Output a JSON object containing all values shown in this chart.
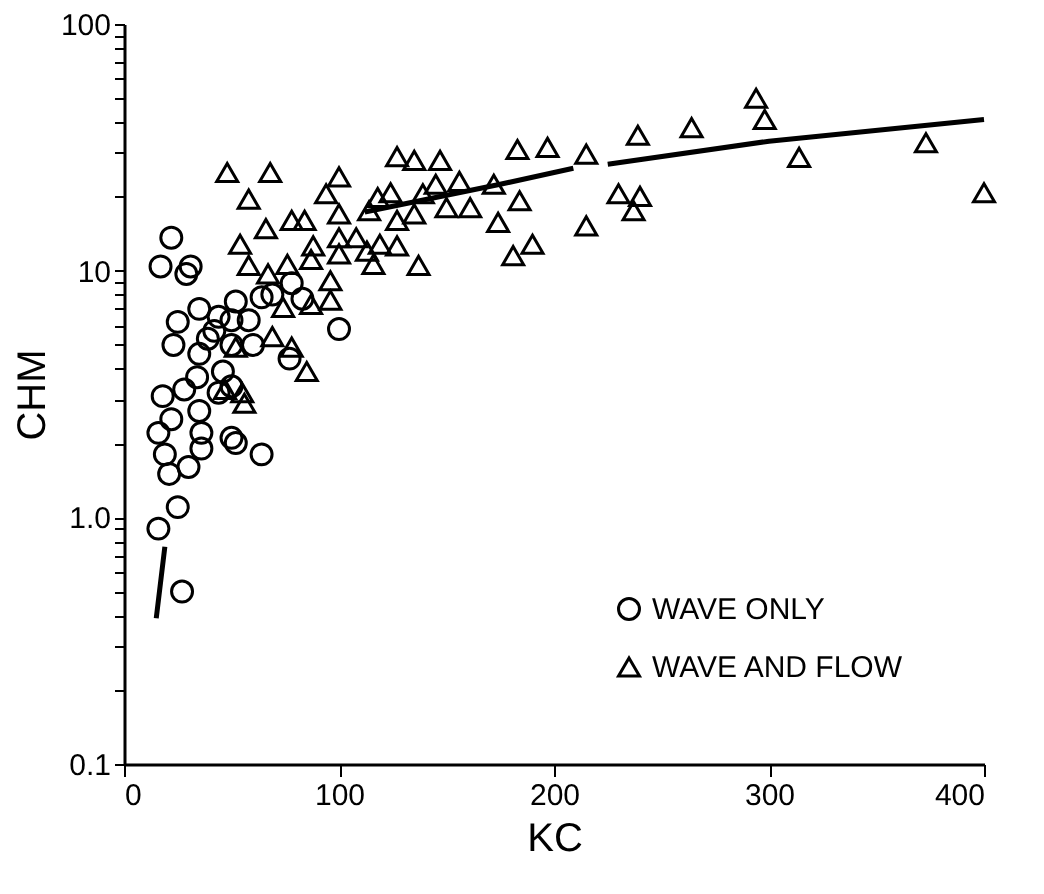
{
  "chart_data": {
    "type": "scatter",
    "xlabel": "KC",
    "ylabel": "CHM",
    "log": "y",
    "xlim": [
      0,
      400
    ],
    "xticks": [
      0,
      100,
      200,
      300,
      400
    ],
    "ylim": [
      0.1,
      100
    ],
    "yticks": [
      0.1,
      {
        "value": 0.2,
        "label": null
      },
      {
        "value": 0.3,
        "label": null
      },
      {
        "value": 0.4,
        "label": null
      },
      {
        "value": 0.5,
        "label": null
      },
      {
        "value": 0.6,
        "label": null
      },
      {
        "value": 0.7,
        "label": null
      },
      {
        "value": 0.8,
        "label": null
      },
      {
        "value": 0.9,
        "label": null
      },
      {
        "value": 1,
        "label": "1.0"
      },
      {
        "value": 2,
        "label": null
      },
      {
        "value": 3,
        "label": null
      },
      {
        "value": 4,
        "label": null
      },
      {
        "value": 5,
        "label": null
      },
      {
        "value": 6,
        "label": null
      },
      {
        "value": 7,
        "label": null
      },
      {
        "value": 8,
        "label": null
      },
      {
        "value": 9,
        "label": null
      },
      10,
      {
        "value": 20,
        "label": null
      },
      {
        "value": 30,
        "label": null
      },
      {
        "value": 40,
        "label": null
      },
      {
        "value": 50,
        "label": null
      },
      {
        "value": 60,
        "label": null
      },
      {
        "value": 70,
        "label": null
      },
      {
        "value": 80,
        "label": null
      },
      {
        "value": 90,
        "label": null
      },
      100
    ],
    "grid": false,
    "legend": "bottom right",
    "series": [
      {
        "name": "WAVE ONLY",
        "marker": "circle",
        "color": "#000000",
        "x": [
          16,
          27,
          22,
          17,
          31,
          29,
          35,
          44,
          52,
          25,
          23,
          39,
          35,
          50,
          58,
          60,
          50,
          64,
          46,
          34,
          28,
          18,
          35,
          36,
          36,
          16,
          19,
          21,
          30,
          25,
          50,
          52,
          64,
          100,
          69,
          78,
          83,
          44,
          50,
          77,
          42,
          22
        ],
        "values": [
          0.9,
          0.5,
          13.6,
          10.4,
          10.4,
          9.7,
          7.0,
          6.5,
          7.5,
          6.2,
          5.0,
          5.3,
          4.6,
          6.3,
          6.3,
          5.0,
          5.0,
          7.8,
          3.9,
          3.7,
          3.3,
          3.1,
          2.7,
          2.2,
          1.9,
          2.2,
          1.8,
          1.5,
          1.6,
          1.1,
          2.1,
          2.0,
          1.8,
          5.8,
          8.0,
          8.9,
          7.7,
          3.2,
          3.4,
          4.4,
          5.7,
          2.5
        ]
      },
      {
        "name": "WAVE AND FLOW",
        "marker": "triangle",
        "color": "#000000",
        "x": [
          48,
          68,
          58,
          78,
          84,
          66,
          54,
          58,
          67,
          76,
          88,
          87,
          94,
          100,
          100,
          100,
          100,
          108,
          113,
          116,
          114,
          118,
          124,
          119,
          127,
          127,
          135,
          127,
          135,
          139,
          147,
          145,
          150,
          156,
          161,
          137,
          172,
          174,
          183,
          184,
          181,
          190,
          197,
          215,
          215,
          230,
          240,
          237,
          239,
          264,
          294,
          298,
          314,
          373,
          400,
          74,
          87,
          96,
          96,
          69,
          78,
          85,
          47,
          55,
          56,
          52
        ],
        "values": [
          25,
          25,
          19.5,
          16,
          16,
          14.8,
          12.8,
          10.5,
          9.7,
          10.6,
          12.6,
          11.1,
          20.5,
          24,
          17,
          13.6,
          11.7,
          13.6,
          12,
          10.6,
          17.5,
          19.8,
          20.7,
          12.8,
          12.6,
          16,
          17,
          29,
          28,
          20.5,
          28,
          22.4,
          18,
          23,
          18,
          10.5,
          22.4,
          15.7,
          31,
          19.2,
          11.5,
          12.8,
          31.6,
          29.7,
          15.2,
          20.5,
          20,
          17.5,
          35.4,
          38,
          50,
          41,
          28.8,
          33,
          20.7,
          7.1,
          7.3,
          7.6,
          9.1,
          5.4,
          4.9,
          3.9,
          3.3,
          3.2,
          2.9,
          4.9
        ]
      },
      {
        "type": "line",
        "color": "#000000",
        "x": [
          15,
          19,
          20,
          112,
          175,
          209,
          217,
          225,
          300,
          400
        ],
        "values": [
          0.39,
          0.76,
          null,
          17.3,
          22.4,
          26,
          null,
          27,
          33.5,
          41
        ]
      }
    ]
  }
}
